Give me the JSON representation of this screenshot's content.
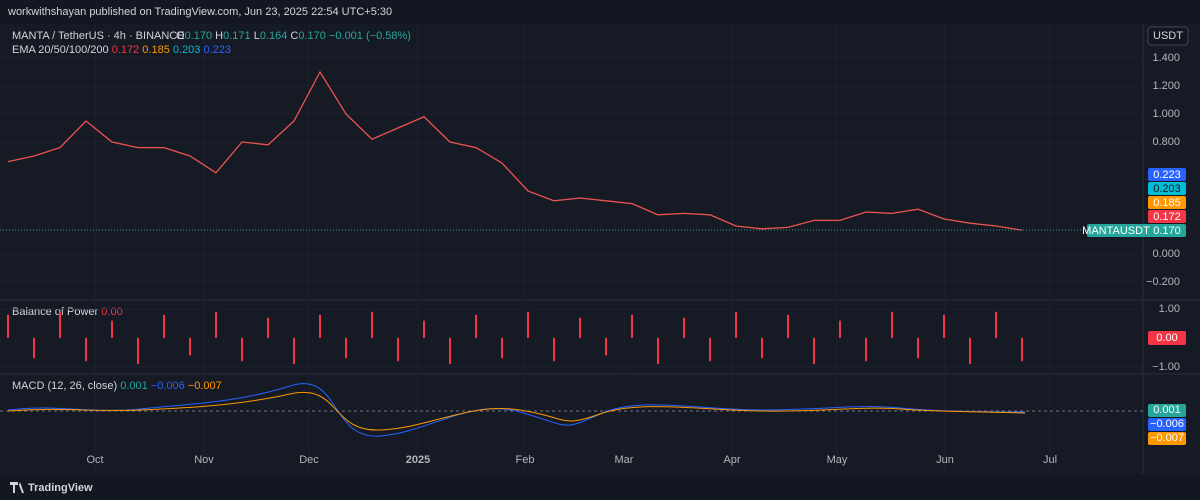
{
  "header": {
    "publisher": "workwithshayan published on TradingView.com, Jun 23, 2025 22:54 UTC+5:30"
  },
  "main": {
    "symbol": "MANTA / TetherUS · 4h · BINANCE",
    "ohlc": [
      "O",
      "0.170",
      "H",
      "0.171",
      "L",
      "0.164",
      "C",
      "0.170"
    ],
    "change": "−0.001 (−0.58%)",
    "ema_label": "EMA 20/50/100/200",
    "ema_values": [
      "0.172",
      "0.185",
      "0.203",
      "0.223"
    ],
    "currency": "USDT",
    "yticks": [
      {
        "value": 1.4,
        "label": "1.400"
      },
      {
        "value": 1.2,
        "label": "1.200"
      },
      {
        "value": 1.0,
        "label": "1.000"
      },
      {
        "value": 0.8,
        "label": "0.800"
      },
      {
        "value": 0,
        "label": "0.000"
      },
      {
        "value": -0.2,
        "label": "−0.200"
      }
    ],
    "close": [
      0.66,
      0.7,
      0.76,
      0.95,
      0.8,
      0.76,
      0.76,
      0.7,
      0.58,
      0.8,
      0.78,
      0.95,
      1.3,
      1.0,
      0.82,
      0.9,
      0.98,
      0.8,
      0.76,
      0.65,
      0.45,
      0.38,
      0.4,
      0.38,
      0.36,
      0.28,
      0.29,
      0.28,
      0.2,
      0.18,
      0.19,
      0.24,
      0.24,
      0.3,
      0.29,
      0.32,
      0.25,
      0.22,
      0.2,
      0.17
    ],
    "price_tags": [
      "0.223",
      "0.203",
      "0.185",
      "0.172",
      "0.170"
    ],
    "symbol_tag": "MANTAUSDT"
  },
  "bop": {
    "label": "Balance of Power",
    "value": "0.00",
    "yticks": [
      {
        "value": 1,
        "label": "1.00"
      },
      {
        "value": -1,
        "label": "−1.00"
      }
    ],
    "values": [
      0.8,
      -0.7,
      0.9,
      -0.8,
      0.6,
      -0.9,
      0.8,
      -0.6,
      0.9,
      -0.8,
      0.7,
      -0.9,
      0.8,
      -0.7,
      0.9,
      -0.8,
      0.6,
      -0.9,
      0.8,
      -0.7,
      0.9,
      -0.8,
      0.7,
      -0.6,
      0.8,
      -0.9,
      0.7,
      -0.8,
      0.9,
      -0.7,
      0.8,
      -0.9,
      0.6,
      -0.8,
      0.9,
      -0.7,
      0.8,
      -0.9,
      0.9,
      -0.8
    ]
  },
  "macd": {
    "label": "MACD (12, 26, close)",
    "values": [
      "0.001",
      "−0.006",
      "−0.007"
    ]
  },
  "x_axis": [
    "Oct",
    "Nov",
    "Dec",
    "2025",
    "Feb",
    "Mar",
    "Apr",
    "May",
    "Jun",
    "Jul"
  ],
  "footer": {
    "brand": "TradingView"
  }
}
